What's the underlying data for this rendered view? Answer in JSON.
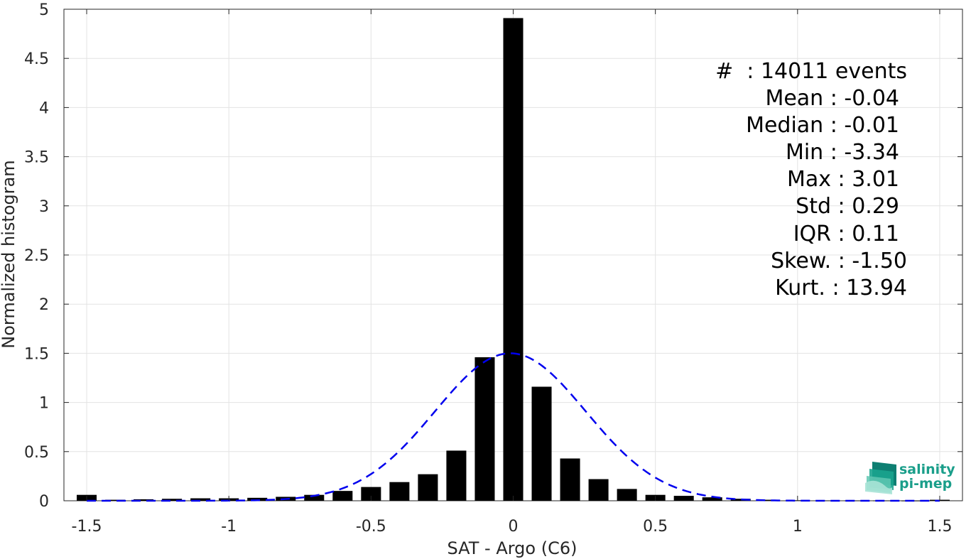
{
  "chart_data": {
    "type": "bar",
    "xlabel": "SAT - Argo (C6)",
    "ylabel": "Normalized histogram",
    "xlim": [
      -1.58,
      1.58
    ],
    "ylim": [
      0,
      5
    ],
    "xticks": [
      -1.5,
      -1,
      -0.5,
      0,
      0.5,
      1,
      1.5
    ],
    "xtick_labels": [
      "-1.5",
      "-1",
      "-0.5",
      "0",
      "0.5",
      "1",
      "1.5"
    ],
    "yticks": [
      0,
      0.5,
      1,
      1.5,
      2,
      2.5,
      3,
      3.5,
      4,
      4.5,
      5
    ],
    "ytick_labels": [
      "0",
      "0.5",
      "1",
      "1.5",
      "2",
      "2.5",
      "3",
      "3.5",
      "4",
      "4.5",
      "5"
    ],
    "grid": true,
    "bar_width": 0.07,
    "bins": [
      {
        "x": -1.5,
        "value": 0.06
      },
      {
        "x": -1.4,
        "value": 0.01
      },
      {
        "x": -1.3,
        "value": 0.015
      },
      {
        "x": -1.2,
        "value": 0.02
      },
      {
        "x": -1.1,
        "value": 0.025
      },
      {
        "x": -1.0,
        "value": 0.025
      },
      {
        "x": -0.9,
        "value": 0.03
      },
      {
        "x": -0.8,
        "value": 0.04
      },
      {
        "x": -0.7,
        "value": 0.06
      },
      {
        "x": -0.6,
        "value": 0.1
      },
      {
        "x": -0.5,
        "value": 0.14
      },
      {
        "x": -0.4,
        "value": 0.19
      },
      {
        "x": -0.3,
        "value": 0.27
      },
      {
        "x": -0.2,
        "value": 0.51
      },
      {
        "x": -0.1,
        "value": 1.46
      },
      {
        "x": 0.0,
        "value": 4.91
      },
      {
        "x": 0.1,
        "value": 1.16
      },
      {
        "x": 0.2,
        "value": 0.43
      },
      {
        "x": 0.3,
        "value": 0.22
      },
      {
        "x": 0.4,
        "value": 0.12
      },
      {
        "x": 0.5,
        "value": 0.06
      },
      {
        "x": 0.6,
        "value": 0.05
      },
      {
        "x": 0.7,
        "value": 0.035
      },
      {
        "x": 0.8,
        "value": 0.02
      },
      {
        "x": 0.9,
        "value": 0.01
      },
      {
        "x": 1.0,
        "value": 0.005
      },
      {
        "x": 1.1,
        "value": 0.003
      },
      {
        "x": 1.2,
        "value": 0.002
      },
      {
        "x": 1.3,
        "value": 0.002
      },
      {
        "x": 1.4,
        "value": 0.001
      },
      {
        "x": 1.5,
        "value": 0.01
      }
    ],
    "fit_curve": {
      "style": "dashed",
      "color": "#0000ee",
      "mean": -0.01,
      "std": 0.265,
      "peak": 1.5
    },
    "bar_color": "#000000",
    "stats_box": {
      "lines": [
        "#  : 14011 events",
        "Mean : -0.04",
        "Median : -0.01",
        "Min : -3.34",
        "Max : 3.01",
        "Std : 0.29",
        "IQR : 0.11",
        "Skew. : -1.50",
        "Kurt. : 13.94"
      ],
      "placement": "top-right"
    }
  },
  "logo": {
    "line1": "salinity",
    "line2": "pi-mep",
    "color": "#1a9e8a"
  }
}
